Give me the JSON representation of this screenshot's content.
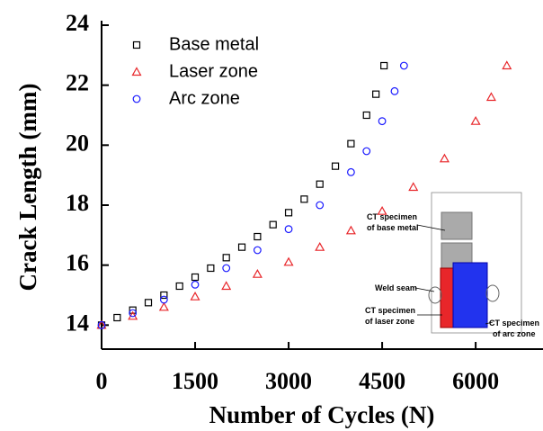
{
  "chart_data": {
    "type": "scatter",
    "x_label": "Number of Cycles (N)",
    "y_label": "Crack Length (mm)",
    "xlim": [
      0,
      7080
    ],
    "ylim": [
      13.2,
      24
    ],
    "xticks": [
      0,
      1500,
      3000,
      4500,
      6000
    ],
    "yticks": [
      14,
      16,
      18,
      20,
      22,
      24
    ],
    "legend": "upper left",
    "series": [
      {
        "name": "Base metal",
        "color": "#000000",
        "marker": "square",
        "x": [
          0,
          250,
          500,
          750,
          1000,
          1250,
          1500,
          1750,
          2000,
          2250,
          2500,
          2750,
          3000,
          3250,
          3500,
          3750,
          4000,
          4250,
          4400,
          4530
        ],
        "values": [
          14.0,
          14.25,
          14.5,
          14.75,
          15.0,
          15.3,
          15.6,
          15.9,
          16.25,
          16.6,
          16.95,
          17.35,
          17.75,
          18.2,
          18.7,
          19.3,
          20.05,
          21.0,
          21.7,
          22.65
        ]
      },
      {
        "name": "Laser zone",
        "color": "#e8262a",
        "marker": "triangle",
        "x": [
          0,
          500,
          1000,
          1500,
          2000,
          2500,
          3000,
          3500,
          4000,
          4500,
          5000,
          5500,
          6000,
          6250,
          6500
        ],
        "values": [
          14.0,
          14.3,
          14.6,
          14.95,
          15.3,
          15.7,
          16.1,
          16.6,
          17.15,
          17.8,
          18.6,
          19.55,
          20.8,
          21.6,
          22.65
        ]
      },
      {
        "name": "Arc zone",
        "color": "#1a1aff",
        "marker": "circle",
        "x": [
          0,
          500,
          1000,
          1500,
          2000,
          2500,
          3000,
          3500,
          4000,
          4250,
          4500,
          4700,
          4850
        ],
        "values": [
          14.0,
          14.4,
          14.85,
          15.35,
          15.9,
          16.5,
          17.2,
          18.0,
          19.1,
          19.8,
          20.8,
          21.8,
          22.65
        ]
      }
    ],
    "annotations": [
      "CT specimen",
      "of base metal",
      "Weld seam",
      "CT specimen",
      "of laser zone",
      "CT specimen",
      "of arc zone"
    ]
  }
}
